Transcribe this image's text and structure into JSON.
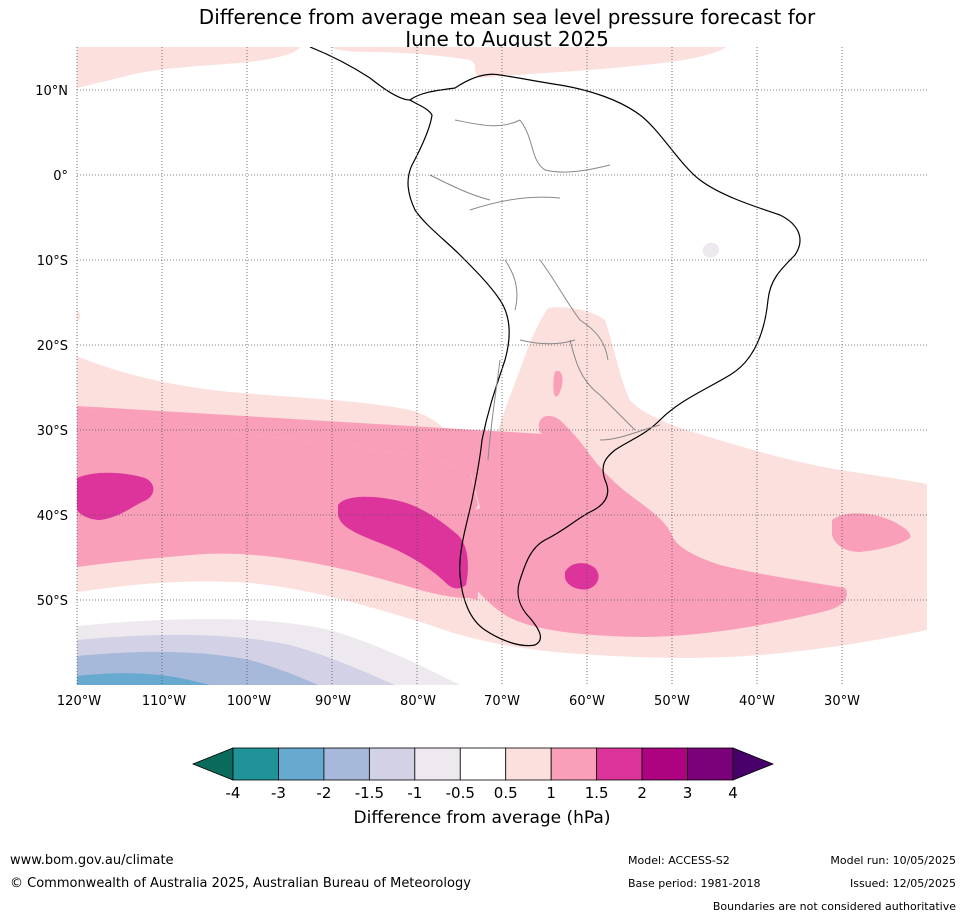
{
  "title": {
    "line1": "Difference from average mean sea level pressure forecast for",
    "line2": "June to August 2025"
  },
  "map": {
    "lat_labels": [
      "10°N",
      "0°",
      "10°S",
      "20°S",
      "30°S",
      "40°S",
      "50°S"
    ],
    "lon_labels": [
      "120°W",
      "110°W",
      "100°W",
      "90°W",
      "80°W",
      "70°W",
      "60°W",
      "50°W",
      "40°W",
      "30°W"
    ],
    "gridlines": "dotted"
  },
  "colorbar": {
    "title": "Difference from average (hPa)",
    "tick_labels": [
      "-4",
      "-3",
      "-2",
      "-1.5",
      "-1",
      "-0.5",
      "0.5",
      "1",
      "1.5",
      "2",
      "3",
      "4"
    ],
    "colors": [
      "#0a6b5c",
      "#1f9398",
      "#68a9d0",
      "#a6b9da",
      "#d2d1e5",
      "#ede9ee",
      "#ffffff",
      "#fce0dd",
      "#f99fb9",
      "#dd349c",
      "#ad0381",
      "#7a0179",
      "#48016a"
    ]
  },
  "footer": {
    "url": "www.bom.gov.au/climate",
    "copyright": "© Commonwealth of Australia 2025, Australian Bureau of Meteorology",
    "model": "Model: ACCESS-S2",
    "base_period": "Base period: 1981-2018",
    "model_run": "Model run: 10/05/2025",
    "issued": "Issued: 12/05/2025",
    "boundaries": "Boundaries are not considered authoritative"
  }
}
